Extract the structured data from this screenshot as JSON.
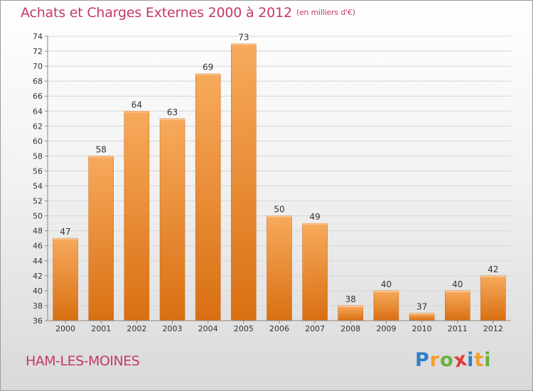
{
  "chart_data": {
    "type": "bar",
    "title": "Achats et Charges Externes 2000 à 2012",
    "unit_note": "(en milliers d'€)",
    "categories": [
      "2000",
      "2001",
      "2002",
      "2003",
      "2004",
      "2005",
      "2006",
      "2007",
      "2008",
      "2009",
      "2010",
      "2011",
      "2012"
    ],
    "values": [
      47,
      58,
      64,
      63,
      69,
      73,
      50,
      49,
      38,
      40,
      37,
      40,
      42
    ],
    "ylim": [
      36,
      74
    ],
    "yticks": [
      36,
      38,
      40,
      42,
      44,
      46,
      48,
      50,
      52,
      54,
      56,
      58,
      60,
      62,
      64,
      66,
      68,
      70,
      72,
      74
    ],
    "grid": true,
    "bar_color": "#f08a2c"
  },
  "location": "HAM-LES-MOINES",
  "logo": {
    "letters": [
      "P",
      "r",
      "o",
      "x",
      "i",
      "t",
      "i"
    ],
    "colors": [
      "#2f7fc8",
      "#f0a02a",
      "#6ab03c",
      "#e23a3a",
      "#2f7fc8",
      "#f0a02a",
      "#6ab03c"
    ]
  }
}
